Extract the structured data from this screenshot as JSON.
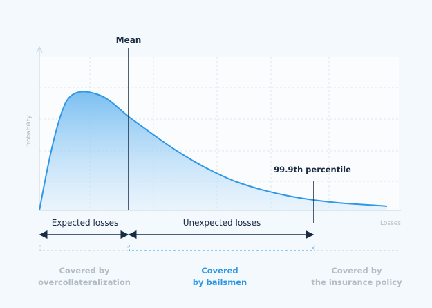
{
  "labels": {
    "mean": "Mean",
    "percentile": "99.9th percentile",
    "y_axis": "Probability",
    "x_axis": "Losses",
    "expected": "Expected losses",
    "unexpected": "Unexpected losses"
  },
  "coverage": {
    "left": [
      "Covered by",
      "overcollateralization"
    ],
    "middle": [
      "Covered",
      "by bailsmen"
    ],
    "right": [
      "Covered by",
      "the insurance policy"
    ]
  },
  "colors": {
    "curve": "#2f98e6",
    "fill": "#8fcaf4",
    "dark_text": "#1a2b44",
    "muted": "#b4bcc6",
    "accent": "#2f98e6",
    "grid": "#dde6ef"
  }
}
